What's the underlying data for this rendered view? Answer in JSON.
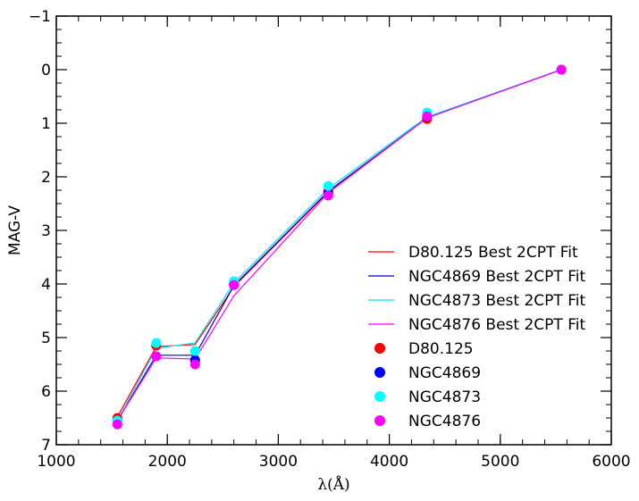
{
  "chart_data": {
    "type": "line",
    "title": "",
    "xlabel": "λ(Å)",
    "ylabel": "MAG-V",
    "xlim": [
      1000,
      6000
    ],
    "ylim": [
      7,
      -1
    ],
    "y_inverted": true,
    "xticks": [
      1000,
      2000,
      3000,
      4000,
      5000,
      6000
    ],
    "yticks": [
      -1,
      0,
      1,
      2,
      3,
      4,
      5,
      6,
      7
    ],
    "x_minor_step": 200,
    "y_minor_step": 0.25,
    "grid": false,
    "legend_position": "lower-right",
    "x": [
      1550,
      1900,
      2250,
      2600,
      3450,
      4340,
      5550
    ],
    "series": [
      {
        "name": "D80.125 Best 2CPT Fit",
        "kind": "line",
        "color": "#ff0000",
        "values": [
          6.48,
          5.17,
          5.13,
          4.05,
          2.28,
          0.9,
          0.0
        ]
      },
      {
        "name": "NGC4869 Best 2CPT Fit",
        "kind": "line",
        "color": "#0000cc",
        "values": [
          6.55,
          5.33,
          5.33,
          4.03,
          2.27,
          0.9,
          0.0
        ]
      },
      {
        "name": "NGC4873 Best 2CPT Fit",
        "kind": "line",
        "color": "#00e5e5",
        "values": [
          6.55,
          5.2,
          5.1,
          3.98,
          2.22,
          0.88,
          0.0
        ]
      },
      {
        "name": "NGC4876 Best 2CPT Fit",
        "kind": "line",
        "color": "#ff00ff",
        "values": [
          6.55,
          5.38,
          5.4,
          4.22,
          2.3,
          0.9,
          0.0
        ]
      },
      {
        "name": "D80.125",
        "kind": "scatter",
        "color": "#ff0000",
        "values": [
          6.5,
          5.15,
          5.43,
          4.0,
          2.27,
          0.92,
          0.0
        ]
      },
      {
        "name": "NGC4869",
        "kind": "scatter",
        "color": "#0000ff",
        "values": [
          6.55,
          5.35,
          5.42,
          4.0,
          2.3,
          0.88,
          0.0
        ]
      },
      {
        "name": "NGC4873",
        "kind": "scatter",
        "color": "#00ffff",
        "values": [
          6.55,
          5.1,
          5.25,
          3.95,
          2.17,
          0.8,
          0.0
        ]
      },
      {
        "name": "NGC4876",
        "kind": "scatter",
        "color": "#ff00ff",
        "values": [
          6.62,
          5.35,
          5.5,
          4.02,
          2.35,
          0.87,
          0.0
        ]
      }
    ]
  }
}
